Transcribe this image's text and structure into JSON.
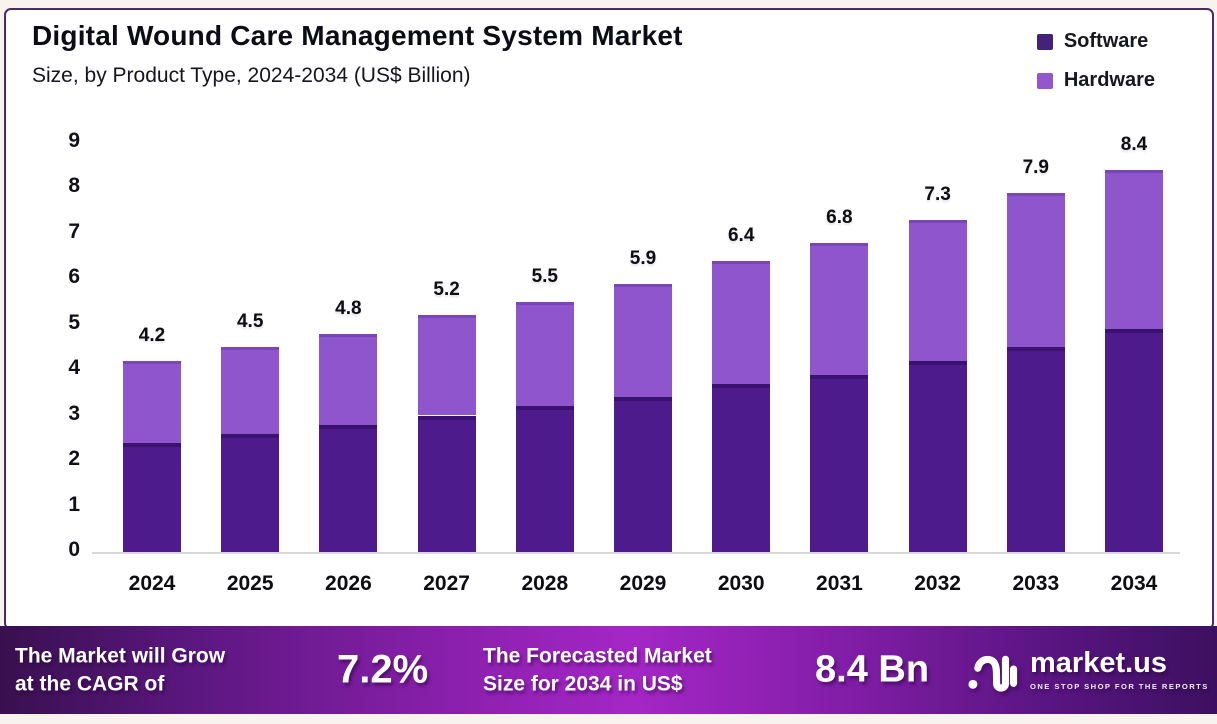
{
  "title": "Digital Wound Care Management System Market",
  "subtitle": "Size, by Product Type, 2024-2034 (US$ Billion)",
  "legend": [
    {
      "label": "Software",
      "color": "#44217b"
    },
    {
      "label": "Hardware",
      "color": "#9257cd"
    }
  ],
  "chart_data": {
    "type": "bar",
    "stacked": true,
    "title": "Digital Wound Care Management System Market Size, by Product Type, 2024-2034 (US$ Billion)",
    "categories": [
      "2024",
      "2025",
      "2026",
      "2027",
      "2028",
      "2029",
      "2030",
      "2031",
      "2032",
      "2033",
      "2034"
    ],
    "series": [
      {
        "name": "Software",
        "color": "#4d1b8c",
        "values": [
          2.4,
          2.6,
          2.8,
          3.0,
          3.2,
          3.4,
          3.7,
          3.9,
          4.2,
          4.5,
          4.9
        ]
      },
      {
        "name": "Hardware",
        "color": "#8f55cc",
        "values": [
          1.8,
          1.9,
          2.0,
          2.2,
          2.3,
          2.5,
          2.7,
          2.9,
          3.1,
          3.4,
          3.5
        ]
      }
    ],
    "totals": [
      4.2,
      4.5,
      4.8,
      5.2,
      5.5,
      5.9,
      6.4,
      6.8,
      7.3,
      7.9,
      8.4
    ],
    "xlabel": "",
    "ylabel": "",
    "ylim": [
      0,
      9
    ],
    "yticks": [
      0,
      1,
      2,
      3,
      4,
      5,
      6,
      7,
      8,
      9
    ],
    "grid": false,
    "legend_position": "top-right",
    "value_labels": "total-above-bar"
  },
  "footer": {
    "cagr_line1": "The Market will Grow",
    "cagr_line2": "at the CAGR of",
    "cagr_value": "7.2%",
    "forecast_line1": "The Forecasted Market",
    "forecast_line2": "Size for 2034 in US$",
    "forecast_value": "8.4 Bn",
    "brand_name": "market.us",
    "brand_tagline": "ONE STOP SHOP FOR THE REPORTS"
  },
  "colors": {
    "panel_border": "#4b2a68",
    "axis_line": "#d8d8d8",
    "banner_left": "#38104f",
    "banner_center": "#a426c6",
    "banner_right": "#3c1060",
    "text": "#0d0d12"
  }
}
